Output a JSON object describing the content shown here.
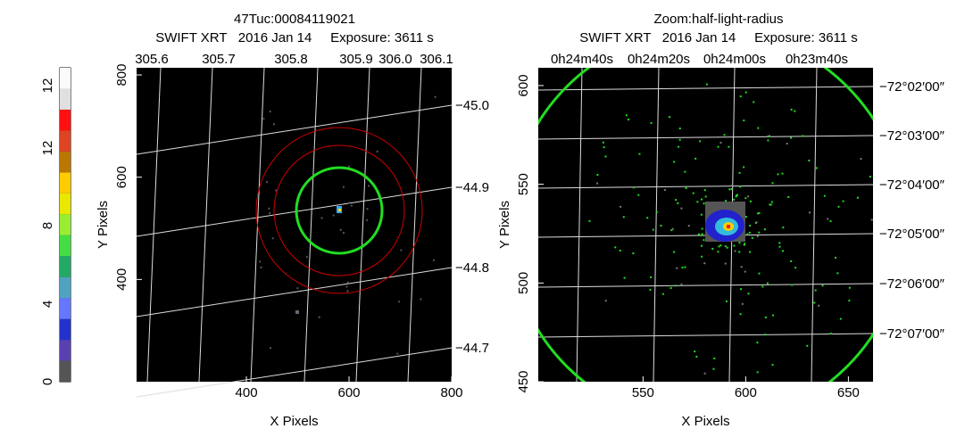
{
  "chart_data": [
    {
      "type": "image",
      "title": "47Tuc:00084119021",
      "subtitle": "SWIFT XRT   2016 Jan 14     Exposure: 3611 s",
      "x_label": "X Pixels",
      "y_label": "Y Pixels",
      "xlim": [
        186,
        800
      ],
      "ylim": [
        200,
        814
      ],
      "xticks": [
        400,
        600,
        800
      ],
      "yticks": [
        400,
        600,
        800
      ],
      "top_ticks": [
        "305.6",
        "305.7",
        "305.8",
        "305.9",
        "306.0",
        "306.1"
      ],
      "right_ticks": [
        "−45.0",
        "−44.9",
        "−44.8",
        "−44.7"
      ]
    },
    {
      "type": "image",
      "title": "Zoom:half-light-radius",
      "subtitle": "SWIFT XRT   2016 Jan 14     Exposure: 3611 s",
      "x_label": "X Pixels",
      "y_label": "Y Pixels",
      "xlim": [
        499,
        662
      ],
      "ylim": [
        450,
        609
      ],
      "xticks": [
        550,
        600,
        650
      ],
      "yticks": [
        450,
        500,
        550,
        600
      ],
      "top_ticks": [
        "0h24m40s",
        "0h24m20s",
        "0h24m00s",
        "0h23m40s"
      ],
      "right_ticks": [
        "−72°02′00″",
        "−72°03′00″",
        "−72°04′00″",
        "−72°05′00″",
        "−72°06′00″",
        "−72°07′00″"
      ]
    }
  ],
  "colorbar_labels": [
    "0",
    "4",
    "8",
    "12",
    "12"
  ]
}
